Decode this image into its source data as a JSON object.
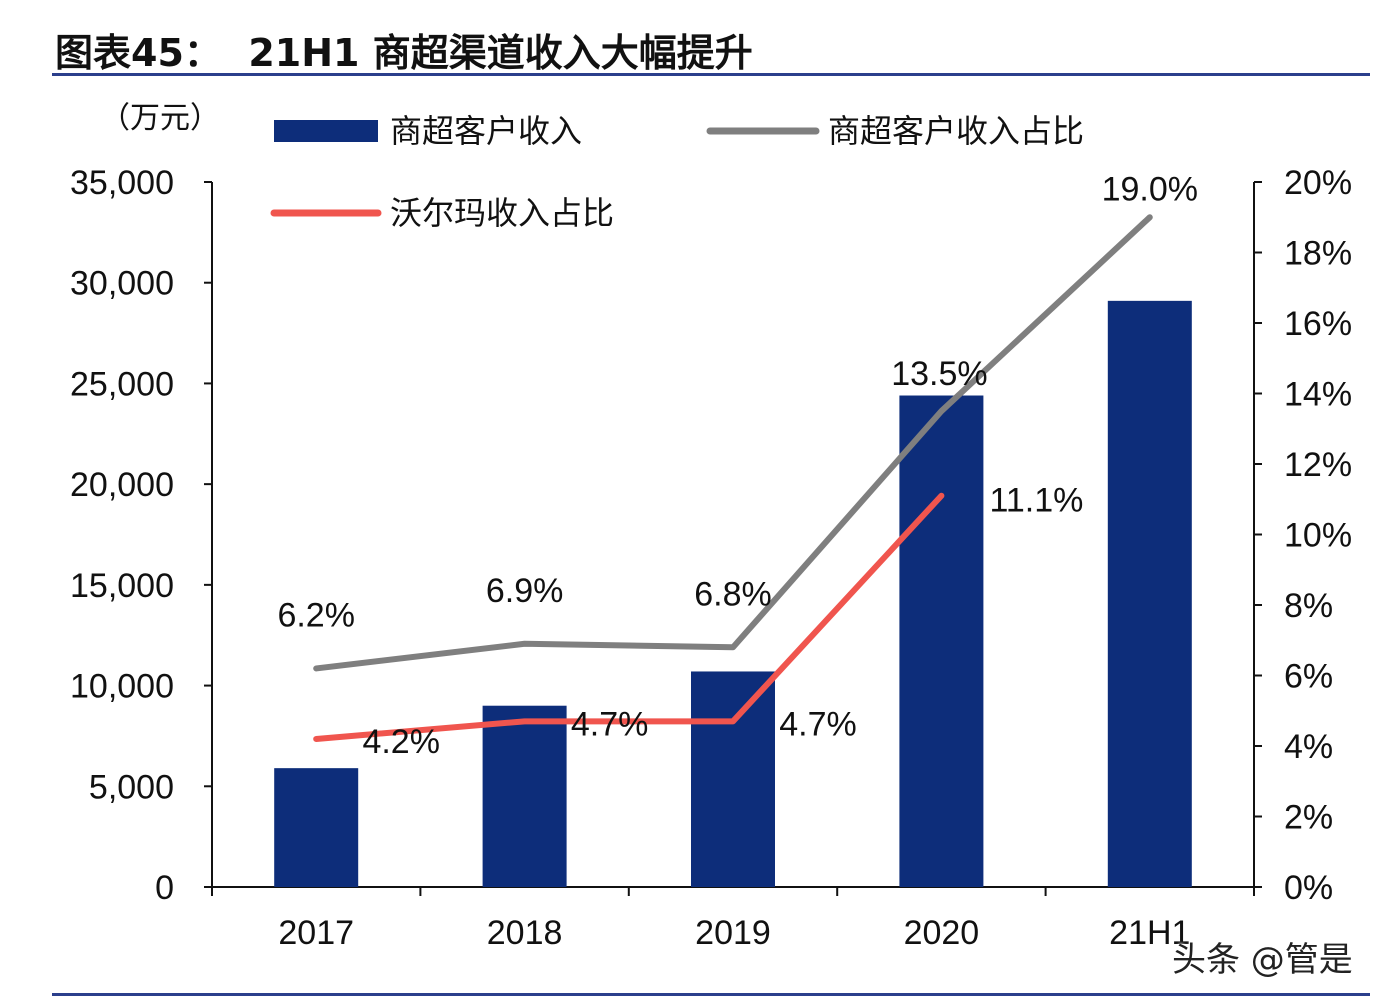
{
  "title": "图表45：  21H1 商超渠道收入大幅提升",
  "watermark": "头条 @管是",
  "chart_data": {
    "type": "bar",
    "categories": [
      "2017",
      "2018",
      "2019",
      "2020",
      "21H1"
    ],
    "y_left": {
      "unit": "（万元）",
      "min": 0,
      "max": 35000,
      "ticks": [
        "0",
        "5,000",
        "10,000",
        "15,000",
        "20,000",
        "25,000",
        "30,000",
        "35,000"
      ]
    },
    "y_right": {
      "min": 0,
      "max": 20,
      "ticks": [
        "0%",
        "2%",
        "4%",
        "6%",
        "8%",
        "10%",
        "12%",
        "14%",
        "16%",
        "18%",
        "20%"
      ]
    },
    "series": [
      {
        "name": "商超客户收入",
        "type": "bar",
        "axis": "left",
        "color": "#0d2d7a",
        "values": [
          5900,
          9000,
          10700,
          24400,
          29100
        ]
      },
      {
        "name": "商超客户收入占比",
        "type": "line",
        "axis": "right",
        "color": "#7f7f7f",
        "values": [
          6.2,
          6.9,
          6.8,
          13.5,
          19.0
        ],
        "labels": [
          "6.2%",
          "6.9%",
          "6.8%",
          "13.5%",
          "19.0%"
        ]
      },
      {
        "name": "沃尔玛收入占比",
        "type": "line",
        "axis": "right",
        "color": "#f0554e",
        "values": [
          4.2,
          4.7,
          4.7,
          11.1,
          null
        ],
        "labels": [
          "4.2%",
          "4.7%",
          "4.7%",
          "11.1%",
          ""
        ]
      }
    ],
    "legend_position": "top"
  }
}
